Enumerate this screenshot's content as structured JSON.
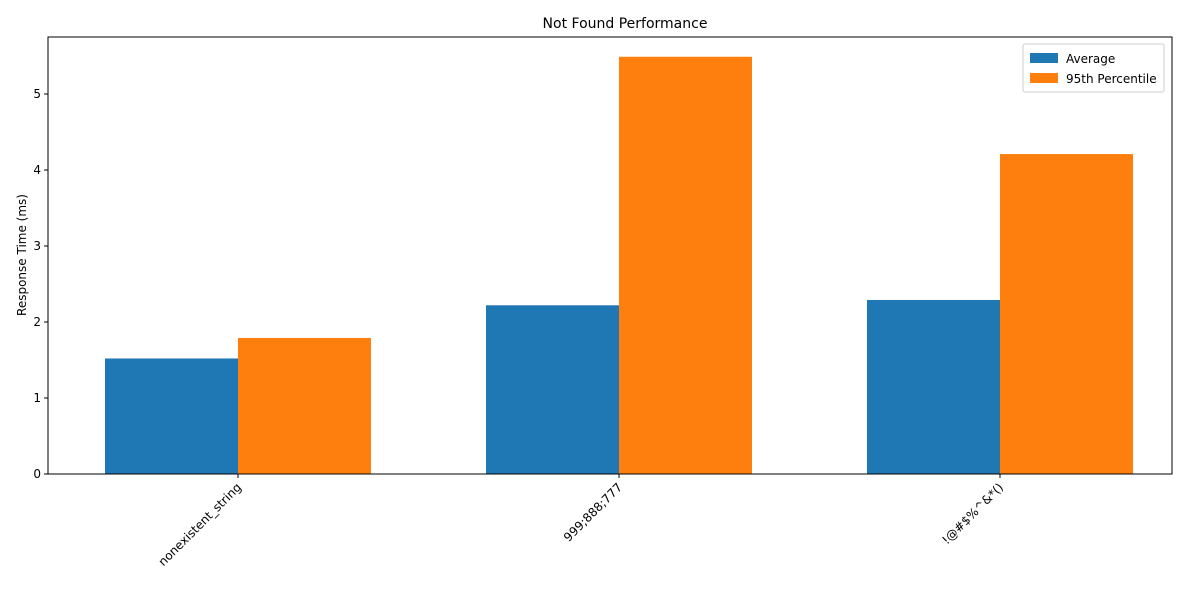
{
  "chart_data": {
    "type": "bar",
    "title": "Not Found Performance",
    "xlabel": "",
    "ylabel": "Response Time (ms)",
    "categories": [
      "nonexistent_string",
      "999;888;777",
      "!@#$%^&*()"
    ],
    "series": [
      {
        "name": "Average",
        "values": [
          1.52,
          2.22,
          2.29
        ],
        "color": "#1f77b4"
      },
      {
        "name": "95th Percentile",
        "values": [
          1.79,
          5.49,
          4.21
        ],
        "color": "#ff7f0e"
      }
    ],
    "ylim": [
      0,
      5.75
    ],
    "yticks": [
      "0",
      "1",
      "2",
      "3",
      "4",
      "5"
    ],
    "grid": false,
    "legend_position": "top-right",
    "xtick_rotation": 45
  }
}
